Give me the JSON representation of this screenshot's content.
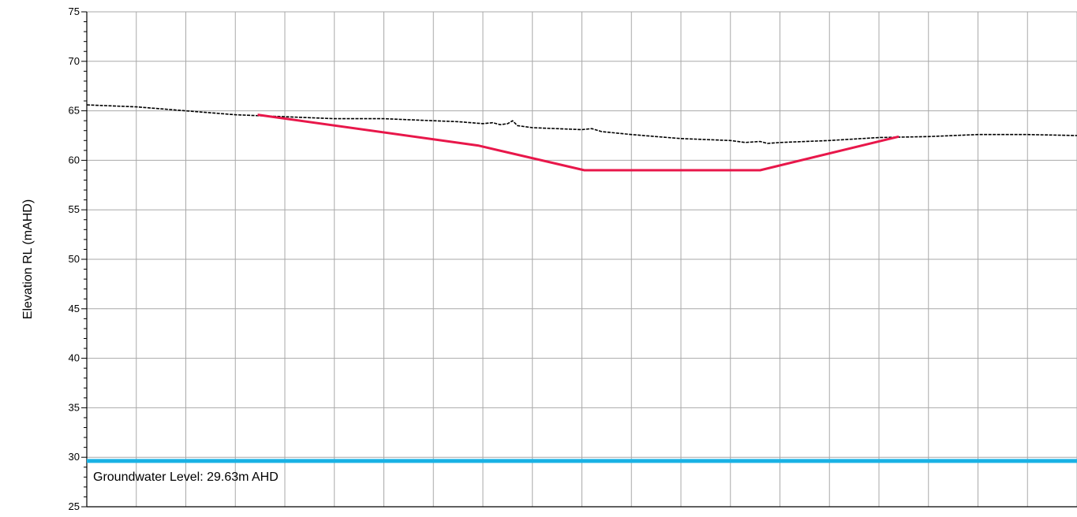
{
  "chart_data": {
    "type": "line",
    "ylabel": "Elevation RL (mAHD)",
    "xlabel": "",
    "ylim": [
      25,
      75
    ],
    "y_ticks": [
      "25",
      "30",
      "35",
      "40",
      "45",
      "50",
      "55",
      "60",
      "65",
      "70",
      "75"
    ],
    "x_range": [
      0,
      20
    ],
    "x_grid_count": 20,
    "grid": true,
    "x_ticks_labeled": false,
    "series": [
      {
        "style": "dashed",
        "color": "#000000",
        "points": [
          [
            0,
            65.6
          ],
          [
            1,
            65.4
          ],
          [
            2,
            65.0
          ],
          [
            3,
            64.6
          ],
          [
            4,
            64.4
          ],
          [
            5,
            64.2
          ],
          [
            6,
            64.2
          ],
          [
            6.5,
            64.1
          ],
          [
            7,
            64.0
          ],
          [
            7.5,
            63.9
          ],
          [
            8,
            63.7
          ],
          [
            8.2,
            63.8
          ],
          [
            8.35,
            63.6
          ],
          [
            8.5,
            63.7
          ],
          [
            8.6,
            64.0
          ],
          [
            8.7,
            63.5
          ],
          [
            9,
            63.3
          ],
          [
            10,
            63.1
          ],
          [
            10.2,
            63.2
          ],
          [
            10.4,
            62.9
          ],
          [
            11,
            62.6
          ],
          [
            11.5,
            62.4
          ],
          [
            12,
            62.2
          ],
          [
            13,
            62.0
          ],
          [
            13.3,
            61.8
          ],
          [
            13.6,
            61.9
          ],
          [
            13.75,
            61.7
          ],
          [
            14,
            61.8
          ],
          [
            15,
            62.0
          ],
          [
            16,
            62.3
          ],
          [
            17,
            62.4
          ],
          [
            18,
            62.6
          ],
          [
            19,
            62.6
          ],
          [
            20,
            62.5
          ]
        ]
      },
      {
        "style": "solid",
        "color": "#e8174a",
        "points": [
          [
            3.45,
            64.6
          ],
          [
            7.9,
            61.5
          ],
          [
            10.05,
            59.0
          ],
          [
            13.6,
            59.0
          ],
          [
            16.4,
            62.4
          ]
        ]
      }
    ],
    "groundwater": {
      "value": 29.63,
      "color": "#1ab2e5",
      "label": "Groundwater Level: 29.63m AHD"
    }
  }
}
